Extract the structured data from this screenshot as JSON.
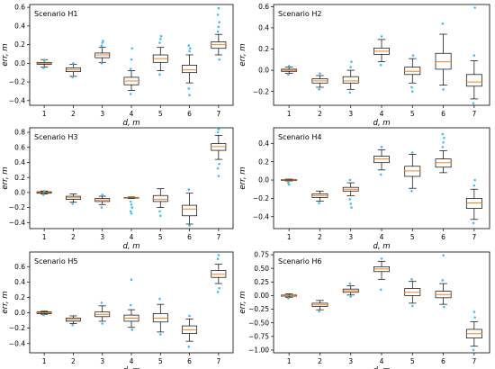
{
  "chart_data": [
    {
      "type": "box",
      "title": "Scenario H1",
      "xlabel": "d, m",
      "ylabel": "err, m",
      "categories": [
        "1",
        "2",
        "3",
        "4",
        "5",
        "6",
        "7"
      ],
      "ylim": [
        -0.45,
        0.63
      ],
      "yticks": [
        -0.4,
        -0.2,
        0.0,
        0.2,
        0.4,
        0.6
      ],
      "ytick_labels": [
        "−0.4",
        "−0.2",
        "0.0",
        "0.2",
        "0.4",
        "0.6"
      ],
      "boxes": [
        {
          "whislo": -0.04,
          "q1": -0.01,
          "med": 0.0,
          "q3": 0.01,
          "whishi": 0.04,
          "fliers": [
            -0.05,
            0.03
          ]
        },
        {
          "whislo": -0.14,
          "q1": -0.09,
          "med": -0.07,
          "q3": -0.05,
          "whishi": -0.01,
          "fliers": [
            -0.15,
            0.0
          ]
        },
        {
          "whislo": 0.01,
          "q1": 0.06,
          "med": 0.09,
          "q3": 0.11,
          "whishi": 0.17,
          "fliers": [
            0.19,
            0.22,
            0.24,
            0.0
          ]
        },
        {
          "whislo": -0.29,
          "q1": -0.23,
          "med": -0.19,
          "q3": -0.15,
          "whishi": -0.08,
          "fliers": [
            -0.33,
            0.04,
            0.16,
            -0.06
          ]
        },
        {
          "whislo": -0.08,
          "q1": 0.01,
          "med": 0.05,
          "q3": 0.09,
          "whishi": 0.17,
          "fliers": [
            0.22,
            0.26,
            0.29,
            -0.12
          ]
        },
        {
          "whislo": -0.21,
          "q1": -0.1,
          "med": -0.07,
          "q3": -0.02,
          "whishi": 0.09,
          "fliers": [
            -0.27,
            -0.34,
            0.16,
            0.19,
            0.13
          ]
        },
        {
          "whislo": 0.09,
          "q1": 0.16,
          "med": 0.2,
          "q3": 0.23,
          "whishi": 0.31,
          "fliers": [
            0.34,
            0.39,
            0.44,
            0.52,
            0.59,
            0.04
          ]
        }
      ]
    },
    {
      "type": "box",
      "title": "Scenario H2",
      "xlabel": "d, m",
      "ylabel": "err, m",
      "categories": [
        "1",
        "2",
        "3",
        "4",
        "5",
        "6",
        "7"
      ],
      "ylim": [
        -0.33,
        0.62
      ],
      "yticks": [
        -0.2,
        0.0,
        0.2,
        0.4,
        0.6
      ],
      "ytick_labels": [
        "−0.2",
        "0.0",
        "0.2",
        "0.4",
        "0.6"
      ],
      "boxes": [
        {
          "whislo": -0.03,
          "q1": -0.01,
          "med": 0.0,
          "q3": 0.01,
          "whishi": 0.03,
          "fliers": [
            -0.04,
            0.04
          ]
        },
        {
          "whislo": -0.16,
          "q1": -0.12,
          "med": -0.1,
          "q3": -0.08,
          "whishi": -0.05,
          "fliers": [
            -0.18,
            -0.03
          ]
        },
        {
          "whislo": -0.18,
          "q1": -0.12,
          "med": -0.1,
          "q3": -0.06,
          "whishi": 0.0,
          "fliers": [
            -0.21,
            0.03,
            0.08
          ]
        },
        {
          "whislo": 0.08,
          "q1": 0.15,
          "med": 0.18,
          "q3": 0.21,
          "whishi": 0.29,
          "fliers": [
            0.05,
            0.32
          ]
        },
        {
          "whislo": -0.12,
          "q1": -0.04,
          "med": -0.01,
          "q3": 0.03,
          "whishi": 0.11,
          "fliers": [
            -0.16,
            -0.2,
            0.14
          ]
        },
        {
          "whislo": -0.14,
          "q1": 0.01,
          "med": 0.08,
          "q3": 0.16,
          "whishi": 0.34,
          "fliers": [
            0.44,
            -0.18
          ]
        },
        {
          "whislo": -0.27,
          "q1": -0.15,
          "med": -0.11,
          "q3": -0.04,
          "whishi": 0.09,
          "fliers": [
            -0.31,
            0.14,
            0.59
          ]
        }
      ]
    },
    {
      "type": "box",
      "title": "Scenario H3",
      "xlabel": "d, m",
      "ylabel": "err, m",
      "categories": [
        "1",
        "2",
        "3",
        "4",
        "5",
        "6",
        "7"
      ],
      "ylim": [
        -0.48,
        0.86
      ],
      "yticks": [
        -0.4,
        -0.2,
        0.0,
        0.2,
        0.4,
        0.6,
        0.8
      ],
      "ytick_labels": [
        "−0.4",
        "−0.2",
        "0.0",
        "0.2",
        "0.4",
        "0.6",
        "0.8"
      ],
      "boxes": [
        {
          "whislo": -0.02,
          "q1": -0.01,
          "med": 0.0,
          "q3": 0.01,
          "whishi": 0.02,
          "fliers": [
            -0.03,
            0.02
          ]
        },
        {
          "whislo": -0.13,
          "q1": -0.09,
          "med": -0.07,
          "q3": -0.05,
          "whishi": -0.02,
          "fliers": [
            -0.15
          ]
        },
        {
          "whislo": -0.16,
          "q1": -0.12,
          "med": -0.1,
          "q3": -0.08,
          "whishi": -0.05,
          "fliers": [
            -0.2,
            -0.03
          ]
        },
        {
          "whislo": -0.08,
          "q1": -0.075,
          "med": -0.07,
          "q3": -0.065,
          "whishi": -0.06,
          "fliers": [
            -0.12,
            -0.16,
            -0.2,
            -0.25,
            -0.28
          ]
        },
        {
          "whislo": -0.2,
          "q1": -0.12,
          "med": -0.09,
          "q3": -0.04,
          "whishi": 0.05,
          "fliers": [
            -0.25,
            -0.31
          ]
        },
        {
          "whislo": -0.42,
          "q1": -0.31,
          "med": -0.22,
          "q3": -0.17,
          "whishi": -0.01,
          "fliers": [
            0.04,
            -0.44
          ]
        },
        {
          "whislo": 0.44,
          "q1": 0.56,
          "med": 0.61,
          "q3": 0.65,
          "whishi": 0.76,
          "fliers": [
            0.8,
            0.84,
            0.38,
            0.32,
            0.22
          ]
        }
      ]
    },
    {
      "type": "box",
      "title": "Scenario H4",
      "xlabel": "d, m",
      "ylabel": "err, m",
      "categories": [
        "1",
        "2",
        "3",
        "4",
        "5",
        "6",
        "7"
      ],
      "ylim": [
        -0.53,
        0.57
      ],
      "yticks": [
        -0.4,
        -0.2,
        0.0,
        0.2,
        0.4
      ],
      "ytick_labels": [
        "−0.4",
        "−0.2",
        "0.0",
        "0.2",
        "0.4"
      ],
      "boxes": [
        {
          "whislo": -0.01,
          "q1": -0.005,
          "med": 0.0,
          "q3": 0.005,
          "whishi": 0.01,
          "fliers": [
            -0.03,
            -0.05
          ]
        },
        {
          "whislo": -0.23,
          "q1": -0.19,
          "med": -0.17,
          "q3": -0.15,
          "whishi": -0.12,
          "fliers": [
            -0.25
          ]
        },
        {
          "whislo": -0.17,
          "q1": -0.12,
          "med": -0.1,
          "q3": -0.08,
          "whishi": -0.03,
          "fliers": [
            -0.21,
            -0.26,
            -0.3,
            0.0
          ]
        },
        {
          "whislo": 0.11,
          "q1": 0.19,
          "med": 0.23,
          "q3": 0.26,
          "whishi": 0.33,
          "fliers": [
            0.06,
            0.36
          ]
        },
        {
          "whislo": -0.09,
          "q1": 0.04,
          "med": 0.1,
          "q3": 0.15,
          "whishi": 0.28,
          "fliers": [
            -0.12,
            0.3
          ]
        },
        {
          "whislo": 0.08,
          "q1": 0.14,
          "med": 0.19,
          "q3": 0.23,
          "whishi": 0.32,
          "fliers": [
            0.36,
            0.41,
            0.46,
            0.5
          ]
        },
        {
          "whislo": -0.43,
          "q1": -0.31,
          "med": -0.25,
          "q3": -0.2,
          "whishi": -0.1,
          "fliers": [
            -0.47,
            -0.06,
            0.0
          ]
        }
      ]
    },
    {
      "type": "box",
      "title": "Scenario H5",
      "xlabel": "d, m",
      "ylabel": "err, m",
      "categories": [
        "1",
        "2",
        "3",
        "4",
        "5",
        "6",
        "7"
      ],
      "ylim": [
        -0.52,
        0.79
      ],
      "yticks": [
        -0.4,
        -0.2,
        0.0,
        0.2,
        0.4,
        0.6
      ],
      "ytick_labels": [
        "−0.4",
        "−0.2",
        "0.0",
        "0.2",
        "0.4",
        "0.6"
      ],
      "boxes": [
        {
          "whislo": -0.02,
          "q1": -0.01,
          "med": 0.0,
          "q3": 0.01,
          "whishi": 0.02,
          "fliers": [
            -0.03
          ]
        },
        {
          "whislo": -0.14,
          "q1": -0.11,
          "med": -0.09,
          "q3": -0.07,
          "whishi": -0.04,
          "fliers": [
            -0.16
          ]
        },
        {
          "whislo": -0.11,
          "q1": -0.05,
          "med": -0.02,
          "q3": 0.01,
          "whishi": 0.09,
          "fliers": [
            0.13,
            -0.14
          ]
        },
        {
          "whislo": -0.19,
          "q1": -0.11,
          "med": -0.07,
          "q3": -0.03,
          "whishi": 0.04,
          "fliers": [
            0.1,
            0.43,
            -0.22
          ]
        },
        {
          "whislo": -0.25,
          "q1": -0.12,
          "med": -0.07,
          "q3": -0.01,
          "whishi": 0.11,
          "fliers": [
            0.18,
            -0.28
          ]
        },
        {
          "whislo": -0.37,
          "q1": -0.27,
          "med": -0.22,
          "q3": -0.17,
          "whishi": -0.08,
          "fliers": [
            -0.44,
            -0.04
          ]
        },
        {
          "whislo": 0.38,
          "q1": 0.46,
          "med": 0.5,
          "q3": 0.55,
          "whishi": 0.63,
          "fliers": [
            0.7,
            0.75,
            0.32,
            0.27
          ]
        }
      ]
    },
    {
      "type": "box",
      "title": "Scenario H6",
      "xlabel": "d, m",
      "ylabel": "err, m",
      "categories": [
        "1",
        "2",
        "3",
        "4",
        "5",
        "6",
        "7"
      ],
      "ylim": [
        -1.05,
        0.8
      ],
      "yticks": [
        -1.0,
        -0.75,
        -0.5,
        -0.25,
        0.0,
        0.25,
        0.5,
        0.75
      ],
      "ytick_labels": [
        "−1.00",
        "−0.75",
        "−0.50",
        "−0.25",
        "0.00",
        "0.25",
        "0.50",
        "0.75"
      ],
      "boxes": [
        {
          "whislo": -0.03,
          "q1": -0.01,
          "med": 0.0,
          "q3": 0.01,
          "whishi": 0.03,
          "fliers": [
            -0.05
          ]
        },
        {
          "whislo": -0.26,
          "q1": -0.2,
          "med": -0.17,
          "q3": -0.14,
          "whishi": -0.09,
          "fliers": [
            -0.29
          ]
        },
        {
          "whislo": 0.01,
          "q1": 0.06,
          "med": 0.09,
          "q3": 0.12,
          "whishi": 0.18,
          "fliers": [
            0.22,
            -0.02
          ]
        },
        {
          "whislo": 0.3,
          "q1": 0.44,
          "med": 0.49,
          "q3": 0.53,
          "whishi": 0.63,
          "fliers": [
            0.11,
            0.68
          ]
        },
        {
          "whislo": -0.14,
          "q1": 0.0,
          "med": 0.06,
          "q3": 0.13,
          "whishi": 0.26,
          "fliers": [
            0.3,
            -0.19
          ]
        },
        {
          "whislo": -0.16,
          "q1": -0.04,
          "med": 0.02,
          "q3": 0.08,
          "whishi": 0.22,
          "fliers": [
            0.28,
            0.74,
            -0.21
          ]
        },
        {
          "whislo": -0.93,
          "q1": -0.78,
          "med": -0.7,
          "q3": -0.62,
          "whishi": -0.48,
          "fliers": [
            -1.0,
            -0.3,
            -0.4
          ]
        }
      ]
    }
  ],
  "colors": {
    "flier": "#35c6f2",
    "median": "#ff7f0e",
    "box": "#000000",
    "axes": "#000000"
  }
}
